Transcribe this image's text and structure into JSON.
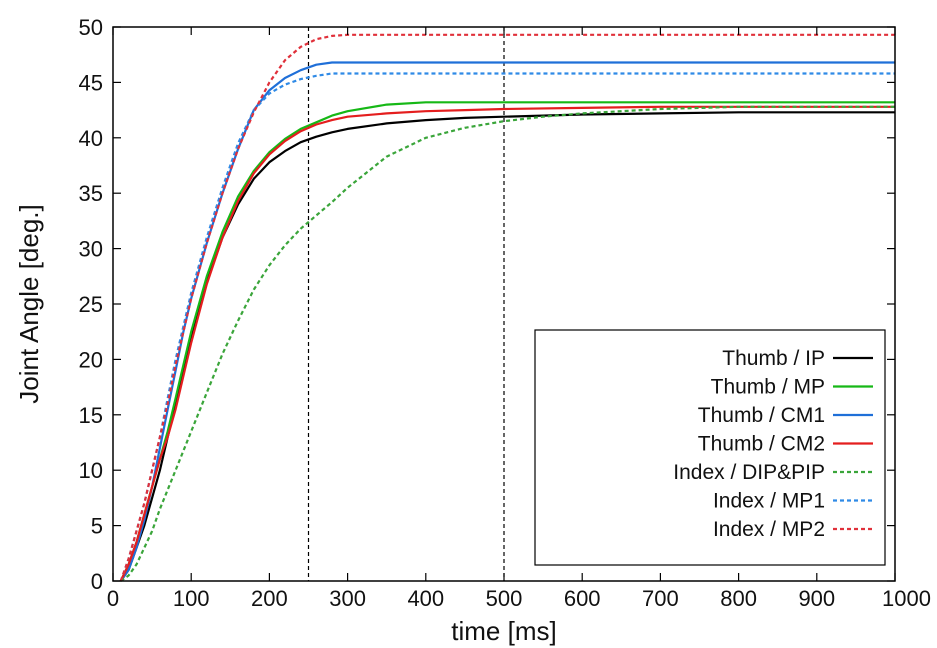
{
  "chart_data": {
    "type": "line",
    "xlabel": "time [ms]",
    "ylabel": "Joint Angle [deg.]",
    "xlim": [
      0,
      1000
    ],
    "ylim": [
      0,
      50
    ],
    "xticks": [
      "0",
      "100",
      "200",
      "300",
      "400",
      "500",
      "600",
      "700",
      "800",
      "900",
      "1000"
    ],
    "yticks": [
      "0",
      "5",
      "10",
      "15",
      "20",
      "25",
      "30",
      "35",
      "40",
      "45",
      "50"
    ],
    "grid": false,
    "legend": "bottom-right",
    "vlines": [
      250,
      500
    ],
    "series": [
      {
        "name": "Thumb / IP",
        "color": "#000000",
        "dash": "solid",
        "x": [
          10,
          20,
          30,
          40,
          50,
          60,
          70,
          80,
          90,
          100,
          120,
          140,
          160,
          180,
          200,
          220,
          240,
          260,
          280,
          300,
          350,
          400,
          450,
          500,
          600,
          700,
          800,
          900,
          1000
        ],
        "y": [
          0,
          1,
          3,
          5,
          7.5,
          10,
          13,
          16,
          19,
          22,
          27,
          31,
          34,
          36.3,
          37.8,
          38.8,
          39.6,
          40.1,
          40.5,
          40.8,
          41.3,
          41.6,
          41.8,
          41.9,
          42.1,
          42.2,
          42.3,
          42.3,
          42.3
        ]
      },
      {
        "name": "Thumb / MP",
        "color": "#16b816",
        "dash": "solid",
        "x": [
          10,
          20,
          30,
          40,
          50,
          60,
          70,
          80,
          90,
          100,
          120,
          140,
          160,
          180,
          200,
          220,
          240,
          260,
          280,
          300,
          350,
          400,
          500,
          600,
          700,
          800,
          900,
          1000
        ],
        "y": [
          0,
          1.5,
          3.5,
          6,
          8.5,
          11,
          13.5,
          16.5,
          19.5,
          22.5,
          27.5,
          31.5,
          34.7,
          37,
          38.7,
          39.9,
          40.8,
          41.4,
          42,
          42.4,
          43,
          43.2,
          43.2,
          43.2,
          43.2,
          43.2,
          43.2,
          43.2
        ]
      },
      {
        "name": "Thumb / CM1",
        "color": "#1f6fd8",
        "dash": "solid",
        "x": [
          10,
          20,
          30,
          40,
          50,
          60,
          70,
          80,
          90,
          100,
          120,
          140,
          160,
          180,
          200,
          220,
          240,
          260,
          280,
          300,
          400,
          500,
          600,
          700,
          800,
          900,
          1000
        ],
        "y": [
          0,
          1,
          3,
          5.5,
          8.5,
          12,
          15.5,
          19,
          22.5,
          25.5,
          30.5,
          35,
          39,
          42.5,
          44.3,
          45.4,
          46.1,
          46.6,
          46.8,
          46.8,
          46.8,
          46.8,
          46.8,
          46.8,
          46.8,
          46.8,
          46.8
        ]
      },
      {
        "name": "Thumb / CM2",
        "color": "#e41e1e",
        "dash": "solid",
        "x": [
          10,
          20,
          30,
          40,
          50,
          60,
          70,
          80,
          90,
          100,
          120,
          140,
          160,
          180,
          200,
          220,
          240,
          260,
          280,
          300,
          350,
          400,
          450,
          500,
          600,
          700,
          800,
          900,
          1000
        ],
        "y": [
          0,
          1.5,
          3.5,
          6,
          8.5,
          11,
          13,
          15.5,
          18.5,
          21.5,
          26.8,
          31,
          34.3,
          36.8,
          38.5,
          39.7,
          40.6,
          41.2,
          41.6,
          41.9,
          42.2,
          42.4,
          42.5,
          42.6,
          42.7,
          42.8,
          42.8,
          42.8,
          42.8
        ]
      },
      {
        "name": "Index / DIP&PIP",
        "color": "#3aa53a",
        "dash": "dotted",
        "x": [
          10,
          20,
          30,
          40,
          50,
          60,
          80,
          100,
          120,
          140,
          160,
          180,
          200,
          220,
          240,
          260,
          280,
          300,
          350,
          400,
          450,
          500,
          550,
          600,
          650,
          700,
          750,
          800,
          900,
          1000
        ],
        "y": [
          0,
          0.5,
          1.5,
          3,
          4.5,
          6.5,
          10,
          13.5,
          17,
          20.5,
          23.5,
          26.3,
          28.5,
          30.3,
          31.8,
          33,
          34.2,
          35.5,
          38.3,
          40,
          40.9,
          41.5,
          41.9,
          42.2,
          42.4,
          42.6,
          42.7,
          42.8,
          42.8,
          42.8
        ]
      },
      {
        "name": "Index / MP1",
        "color": "#2f8ae6",
        "dash": "dotted",
        "x": [
          10,
          20,
          30,
          40,
          50,
          60,
          70,
          80,
          90,
          100,
          120,
          140,
          160,
          180,
          200,
          220,
          240,
          260,
          280,
          300,
          400,
          500,
          600,
          700,
          800,
          900,
          1000
        ],
        "y": [
          0,
          2,
          4.5,
          7,
          10,
          13,
          16.5,
          20,
          23,
          26,
          31,
          35.5,
          39.5,
          42.5,
          44,
          44.8,
          45.3,
          45.6,
          45.8,
          45.8,
          45.8,
          45.8,
          45.8,
          45.8,
          45.8,
          45.8,
          45.8
        ]
      },
      {
        "name": "Index / MP2",
        "color": "#e0303a",
        "dash": "dotted",
        "x": [
          10,
          20,
          30,
          40,
          50,
          60,
          70,
          80,
          90,
          100,
          120,
          140,
          160,
          180,
          200,
          220,
          240,
          260,
          280,
          300,
          400,
          500,
          600,
          700,
          800,
          900,
          1000
        ],
        "y": [
          0,
          2,
          4.5,
          7,
          10,
          13,
          16,
          19.5,
          22.5,
          25.5,
          30.5,
          35,
          39,
          42.3,
          45,
          47,
          48.2,
          48.9,
          49.2,
          49.3,
          49.3,
          49.3,
          49.3,
          49.3,
          49.3,
          49.3,
          49.3
        ]
      }
    ]
  }
}
